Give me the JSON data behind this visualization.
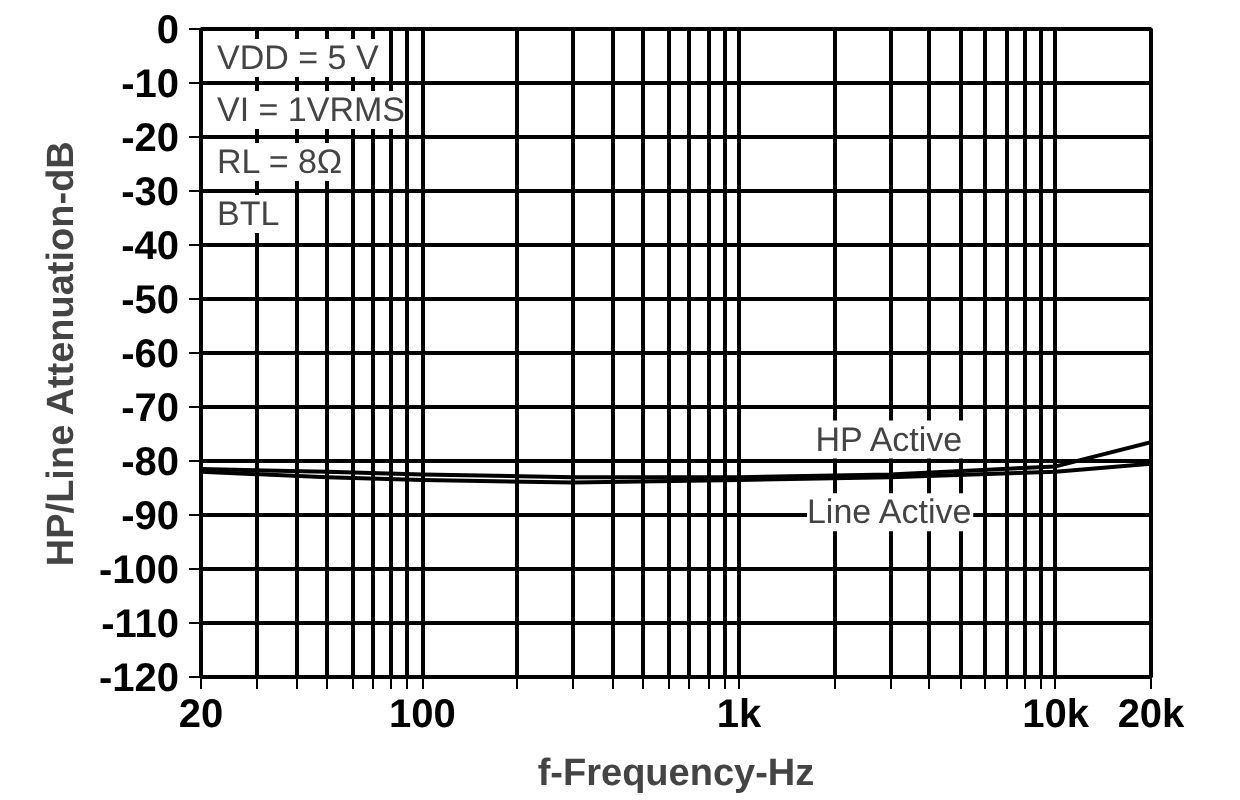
{
  "chart_data": {
    "type": "line",
    "xlabel": "f-Frequency-Hz",
    "ylabel": "HP/Line Attenuation-dB",
    "log": "x",
    "x": [
      20,
      50,
      100,
      300,
      1000,
      3000,
      10000,
      20000
    ],
    "series": [
      {
        "name": "HP Active",
        "color": "#000000",
        "values": [
          -81.5,
          -82,
          -82.5,
          -83,
          -83,
          -82.5,
          -81,
          -76.5
        ]
      },
      {
        "name": "Line Active",
        "color": "#000000",
        "values": [
          -82,
          -83,
          -83.5,
          -84,
          -83.5,
          -83,
          -82,
          -80.5
        ]
      }
    ],
    "xlim": [
      20,
      20000
    ],
    "ylim": [
      -120,
      0
    ],
    "xticks": [
      20,
      {
        "value": 30,
        "label": null
      },
      {
        "value": 40,
        "label": null
      },
      {
        "value": 50,
        "label": null
      },
      {
        "value": 60,
        "label": null
      },
      {
        "value": 70,
        "label": null
      },
      {
        "value": 80,
        "label": null
      },
      {
        "value": 90,
        "label": null
      },
      100,
      {
        "value": 200,
        "label": null
      },
      {
        "value": 300,
        "label": null
      },
      {
        "value": 400,
        "label": null
      },
      {
        "value": 500,
        "label": null
      },
      {
        "value": 600,
        "label": null
      },
      {
        "value": 700,
        "label": null
      },
      {
        "value": 800,
        "label": null
      },
      {
        "value": 900,
        "label": null
      },
      {
        "value": 1000,
        "label": "1k"
      },
      {
        "value": 2000,
        "label": null
      },
      {
        "value": 3000,
        "label": null
      },
      {
        "value": 4000,
        "label": null
      },
      {
        "value": 5000,
        "label": null
      },
      {
        "value": 6000,
        "label": null
      },
      {
        "value": 7000,
        "label": null
      },
      {
        "value": 8000,
        "label": null
      },
      {
        "value": 9000,
        "label": null
      },
      {
        "value": 10000,
        "label": "10k"
      },
      {
        "value": 20000,
        "label": "20k"
      }
    ],
    "yticks": [
      0,
      -10,
      -20,
      -30,
      -40,
      -50,
      -60,
      -70,
      -80,
      -90,
      -100,
      -110,
      -120
    ],
    "grid": true,
    "legend": false,
    "line_style": "solid",
    "marker": "none",
    "annotations": [
      "VDD = 5 V",
      "VI = 1VRMS",
      "RL = 8Ω",
      "BTL"
    ]
  }
}
